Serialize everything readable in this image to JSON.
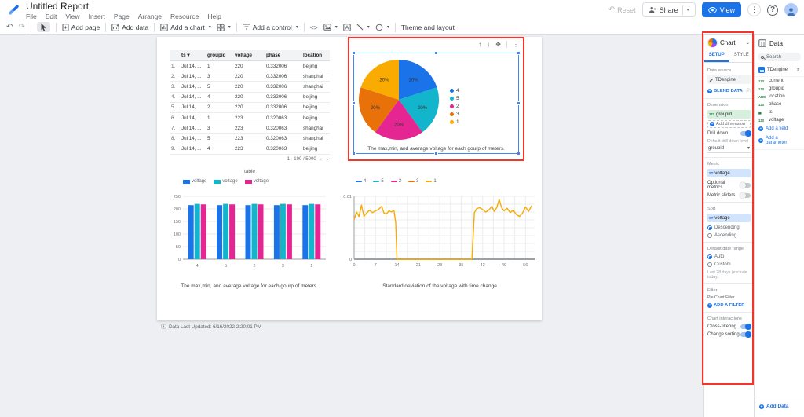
{
  "header": {
    "title": "Untitled Report",
    "menus": [
      "File",
      "Edit",
      "View",
      "Insert",
      "Page",
      "Arrange",
      "Resource",
      "Help"
    ],
    "actions": {
      "reset": "Reset",
      "share": "Share",
      "view": "View"
    }
  },
  "toolbar": {
    "add_page": "Add page",
    "add_data": "Add data",
    "add_chart": "Add a chart",
    "add_control": "Add a control",
    "embed": "<>",
    "theme": "Theme and layout"
  },
  "colors": {
    "accent_blue": "#1a73e8",
    "annotation_red": "#f43529",
    "palette": [
      "#1A73E8",
      "#12B5CB",
      "#E52592",
      "#E8710A",
      "#F9AB00"
    ]
  },
  "selection_toolbar": {
    "up": "↑",
    "down": "↓",
    "move": "✥",
    "more": "⋮"
  },
  "canvas_footer": {
    "info_icon": "ⓘ",
    "text": "Data Last Updated: 6/16/2022 2:20:01 PM"
  },
  "chart_data": [
    {
      "type": "table",
      "title": "table",
      "columns": [
        "",
        "ts",
        "groupid",
        "voltage",
        "phase",
        "location"
      ],
      "sorted_column": "ts",
      "rows": [
        [
          "1.",
          "Jul 14, ...",
          "1",
          "220",
          "0.332006",
          "beijing"
        ],
        [
          "2.",
          "Jul 14, ...",
          "3",
          "220",
          "0.332006",
          "shanghai"
        ],
        [
          "3.",
          "Jul 14, ...",
          "5",
          "220",
          "0.332006",
          "shanghai"
        ],
        [
          "4.",
          "Jul 14, ...",
          "4",
          "220",
          "0.332006",
          "beijing"
        ],
        [
          "5.",
          "Jul 14, ...",
          "2",
          "220",
          "0.332006",
          "beijing"
        ],
        [
          "6.",
          "Jul 14, ...",
          "1",
          "223",
          "0.320063",
          "beijing"
        ],
        [
          "7.",
          "Jul 14, ...",
          "3",
          "223",
          "0.320063",
          "shanghai"
        ],
        [
          "8.",
          "Jul 14, ...",
          "5",
          "223",
          "0.320063",
          "shanghai"
        ],
        [
          "9.",
          "Jul 14, ...",
          "4",
          "223",
          "0.320063",
          "beijing"
        ]
      ],
      "pagination": "1 - 100 / 5000"
    },
    {
      "type": "pie",
      "labels": [
        "4",
        "5",
        "2",
        "3",
        "1"
      ],
      "values": [
        20,
        20,
        20,
        20,
        20
      ],
      "value_labels": [
        "20%",
        "20%",
        "20%",
        "20%",
        "20%"
      ],
      "colors": [
        "#1A73E8",
        "#12B5CB",
        "#E52592",
        "#E8710A",
        "#F9AB00"
      ],
      "legend_position": "right",
      "title": "The max,min, and average voltage for each gourp of meters."
    },
    {
      "type": "bar",
      "categories": [
        "4",
        "5",
        "2",
        "3",
        "1"
      ],
      "series": [
        {
          "name": "voltage",
          "color": "#1A73E8",
          "values": [
            215,
            215,
            215,
            215,
            215
          ]
        },
        {
          "name": "voltage",
          "color": "#12B5CB",
          "values": [
            220,
            220,
            220,
            220,
            220
          ]
        },
        {
          "name": "voltage",
          "color": "#E52592",
          "values": [
            218,
            218,
            218,
            218,
            218
          ]
        }
      ],
      "ylim": [
        0,
        250
      ],
      "yticks": [
        0,
        50,
        100,
        150,
        200,
        250
      ],
      "legend_position": "top",
      "grid": true,
      "title": "The max,min, and average voltage for each gourp of meters."
    },
    {
      "type": "line",
      "legend": [
        {
          "name": "4",
          "color": "#1A73E8"
        },
        {
          "name": "5",
          "color": "#12B5CB"
        },
        {
          "name": "2",
          "color": "#E52592"
        },
        {
          "name": "3",
          "color": "#E8710A"
        },
        {
          "name": "1",
          "color": "#F9AB00"
        }
      ],
      "xticks": [
        0,
        7,
        14,
        21,
        28,
        35,
        42,
        49,
        56
      ],
      "xlim": [
        0,
        59
      ],
      "ylim": [
        0,
        0.01
      ],
      "yticks": [
        0,
        0.01
      ],
      "grid": true,
      "visible_series": {
        "name": "1",
        "color": "#F9AB00",
        "points": [
          [
            0,
            0.0063
          ],
          [
            0.8,
            0.0075
          ],
          [
            1.6,
            0.0068
          ],
          [
            2.4,
            0.0086
          ],
          [
            3.2,
            0.0068
          ],
          [
            4,
            0.0073
          ],
          [
            5,
            0.0078
          ],
          [
            6,
            0.0074
          ],
          [
            7,
            0.0077
          ],
          [
            8,
            0.0079
          ],
          [
            9,
            0.0084
          ],
          [
            9.8,
            0.0073
          ],
          [
            10.6,
            0.0072
          ],
          [
            11.4,
            0.0077
          ],
          [
            12.2,
            0.0075
          ],
          [
            13,
            0.0078
          ],
          [
            13.6,
            0.0058
          ],
          [
            14,
            0
          ],
          [
            38.5,
            0
          ],
          [
            39.3,
            0.0074
          ],
          [
            40,
            0.008
          ],
          [
            41,
            0.0082
          ],
          [
            42,
            0.0079
          ],
          [
            43,
            0.0075
          ],
          [
            44,
            0.0078
          ],
          [
            45,
            0.0084
          ],
          [
            45.8,
            0.0076
          ],
          [
            46.6,
            0.0082
          ],
          [
            47.4,
            0.0095
          ],
          [
            48.2,
            0.0082
          ],
          [
            49,
            0.0077
          ],
          [
            50,
            0.0081
          ],
          [
            51,
            0.0074
          ],
          [
            52,
            0.0078
          ],
          [
            53,
            0.0071
          ],
          [
            54,
            0.0068
          ],
          [
            55,
            0.0073
          ],
          [
            56,
            0.0083
          ],
          [
            57,
            0.0076
          ],
          [
            58,
            0.0085
          ]
        ]
      },
      "title": "Standard deviation of the voltage with time change"
    }
  ],
  "chart_panel": {
    "title": "Chart",
    "tabs": [
      "SETUP",
      "STYLE"
    ],
    "active_tab": "SETUP",
    "data_source": {
      "label": "Data source",
      "name": "TDengine",
      "blend": "BLEND DATA"
    },
    "dimension": {
      "label": "Dimension",
      "chip_badge": "123",
      "chip": "groupid",
      "add": "Add dimension"
    },
    "drill_down": {
      "label": "Drill down",
      "on": true,
      "level_label": "Default drill down level",
      "level_value": "groupid"
    },
    "metric": {
      "label": "Metric",
      "chip_badge": "ST",
      "chip": "voltage",
      "optional_label": "Optional metrics",
      "optional_on": false,
      "sliders_label": "Metric sliders",
      "sliders_on": false
    },
    "sort": {
      "label": "Sort",
      "chip_badge": "ST",
      "chip": "voltage",
      "options": [
        {
          "label": "Descending",
          "selected": true
        },
        {
          "label": "Ascending",
          "selected": false
        }
      ]
    },
    "date_range": {
      "label": "Default date range",
      "options": [
        {
          "label": "Auto",
          "selected": true
        },
        {
          "label": "Custom",
          "selected": false
        }
      ],
      "note": "Last 28 days (exclude today)"
    },
    "filter": {
      "label": "Filter",
      "sub": "Pie Chart Filter",
      "add": "ADD A FILTER"
    },
    "interactions": {
      "label": "Chart interactions",
      "items": [
        {
          "label": "Cross-filtering",
          "on": true
        },
        {
          "label": "Change sorting",
          "on": true
        }
      ]
    }
  },
  "data_panel": {
    "title": "Data",
    "search_placeholder": "Search",
    "source": {
      "name": "TDengine"
    },
    "fields": [
      {
        "name": "current",
        "type": "123"
      },
      {
        "name": "groupid",
        "type": "123"
      },
      {
        "name": "location",
        "type": "ABC"
      },
      {
        "name": "phase",
        "type": "123"
      },
      {
        "name": "ts",
        "type": "date"
      },
      {
        "name": "voltage",
        "type": "123"
      }
    ],
    "add_field": "Add a field",
    "add_parameter": "Add a parameter",
    "add_data": "Add Data"
  }
}
